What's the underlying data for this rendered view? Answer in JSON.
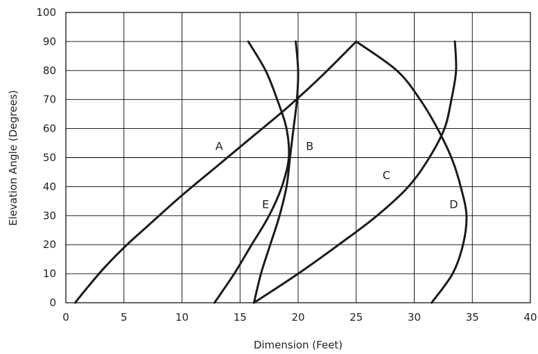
{
  "chart_data": {
    "type": "line",
    "title": "",
    "xlabel": "Dimension (Feet)",
    "ylabel": "Elevation Angle (Degrees)",
    "xlim": [
      0,
      40
    ],
    "ylim": [
      0,
      100
    ],
    "xticks": [
      0,
      5,
      10,
      15,
      20,
      25,
      30,
      35,
      40
    ],
    "yticks": [
      0,
      10,
      20,
      30,
      40,
      50,
      60,
      70,
      80,
      90,
      100
    ],
    "grid": true,
    "line_color": "#1a1a1a",
    "series": [
      {
        "name": "A",
        "label_at": {
          "x": 13.2,
          "y": 54
        },
        "points": [
          [
            0.8,
            0
          ],
          [
            1.8,
            5
          ],
          [
            3.3,
            12
          ],
          [
            5,
            19
          ],
          [
            7.2,
            27
          ],
          [
            10,
            37
          ],
          [
            13,
            47
          ],
          [
            16,
            57
          ],
          [
            19,
            67
          ],
          [
            22,
            78
          ],
          [
            25,
            90
          ]
        ]
      },
      {
        "name": "B",
        "label_at": {
          "x": 21,
          "y": 54
        },
        "points": [
          [
            16.2,
            0
          ],
          [
            16.8,
            10
          ],
          [
            17.6,
            20
          ],
          [
            18.4,
            30
          ],
          [
            19,
            40
          ],
          [
            19.3,
            50
          ],
          [
            19.6,
            60
          ],
          [
            19.9,
            70
          ],
          [
            20,
            80
          ],
          [
            19.8,
            90
          ]
        ]
      },
      {
        "name": "C",
        "label_at": {
          "x": 27.6,
          "y": 44
        },
        "points": [
          [
            16.2,
            0
          ],
          [
            20,
            10
          ],
          [
            23.5,
            20
          ],
          [
            26.8,
            30
          ],
          [
            29.5,
            40
          ],
          [
            31.3,
            50
          ],
          [
            32.6,
            60
          ],
          [
            33.2,
            70
          ],
          [
            33.6,
            80
          ],
          [
            33.5,
            90
          ]
        ]
      },
      {
        "name": "D",
        "label_at": {
          "x": 33.4,
          "y": 34
        },
        "points": [
          [
            31.5,
            0
          ],
          [
            33.3,
            10
          ],
          [
            34.2,
            20
          ],
          [
            34.5,
            30
          ],
          [
            34,
            40
          ],
          [
            33.2,
            50
          ],
          [
            32,
            60
          ],
          [
            30.5,
            70
          ],
          [
            28.5,
            80
          ],
          [
            25,
            90
          ]
        ]
      },
      {
        "name": "E",
        "label_at": {
          "x": 17.2,
          "y": 34
        },
        "points": [
          [
            12.8,
            0
          ],
          [
            14.5,
            10
          ],
          [
            16,
            20
          ],
          [
            17.5,
            30
          ],
          [
            18.6,
            40
          ],
          [
            19.2,
            50
          ],
          [
            19,
            60
          ],
          [
            18.2,
            70
          ],
          [
            17.2,
            80
          ],
          [
            15.7,
            90
          ]
        ]
      }
    ]
  }
}
